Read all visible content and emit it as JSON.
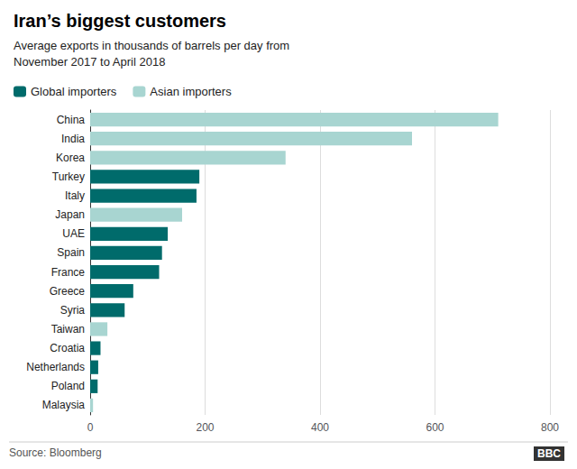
{
  "chart_data": {
    "type": "bar",
    "orientation": "horizontal",
    "title": "Iran’s biggest customers",
    "subtitle": "Average exports in thousands of barrels per day from\nNovember 2017 to April 2018",
    "annotations": [
      "Source: Bloomberg",
      "BBC"
    ],
    "categories": [
      "China",
      "India",
      "Korea",
      "Turkey",
      "Italy",
      "Japan",
      "UAE",
      "Spain",
      "France",
      "Greece",
      "Syria",
      "Taiwan",
      "Croatia",
      "Netherlands",
      "Poland",
      "Malaysia"
    ],
    "series": [
      {
        "name": "Global importers",
        "color": "#006b6b",
        "values": [
          null,
          null,
          null,
          190,
          185,
          null,
          135,
          125,
          120,
          75,
          60,
          null,
          18,
          14,
          13,
          null
        ]
      },
      {
        "name": "Asian importers",
        "color": "#a8d5d1",
        "values": [
          710,
          560,
          340,
          null,
          null,
          160,
          null,
          null,
          null,
          null,
          null,
          30,
          null,
          null,
          null,
          5
        ]
      }
    ],
    "xlim": [
      0,
      800
    ],
    "xticks": [
      0,
      200,
      400,
      600,
      800
    ],
    "grid": true,
    "legend": "upper left"
  }
}
